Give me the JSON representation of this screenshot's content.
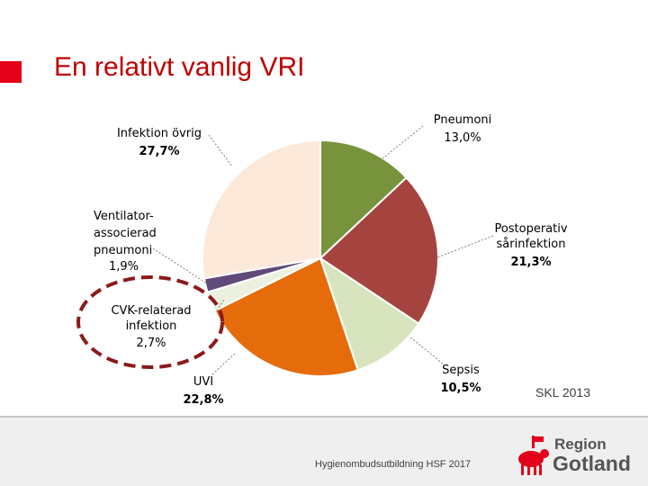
{
  "slide": {
    "title": "En relativt vanlig VRI",
    "source": "SKL 2013",
    "footer": "Hygienombudsutbildning HSF 2017"
  },
  "logo": {
    "line1": "Region",
    "line2": "Gotland",
    "icon": "ram-emblem-icon",
    "color": "#e2001a"
  },
  "chart_data": {
    "type": "pie",
    "title": "",
    "slices": [
      {
        "label": "Pneumoni",
        "value": 13.0,
        "value_text": "13,0%",
        "color": "#77933c"
      },
      {
        "label": "Postoperativ sårinfektion",
        "value": 21.3,
        "value_text": "21,3%",
        "color": "#a5443f"
      },
      {
        "label": "Sepsis",
        "value": 10.5,
        "value_text": "10,5%",
        "color": "#d7e4bd"
      },
      {
        "label": "UVI",
        "value": 22.8,
        "value_text": "22,8%",
        "color": "#e46c0a"
      },
      {
        "label": "CVK-relaterad infektion",
        "value": 2.7,
        "value_text": "2,7%",
        "color": "#ebf1de"
      },
      {
        "label": "Ventilator-associerad pneumoni",
        "value": 1.9,
        "value_text": "1,9%",
        "color": "#604a7b"
      },
      {
        "label": "Infektion övrig",
        "value": 27.7,
        "value_text": "27,7%",
        "color": "#fde9d9"
      }
    ],
    "highlight": "CVK-relaterad infektion",
    "highlight_color": "#8b1a1a"
  }
}
